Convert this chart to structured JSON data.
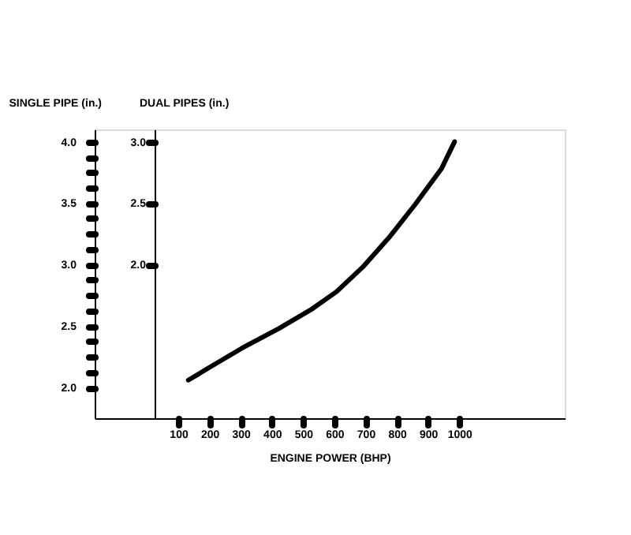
{
  "chart_data": {
    "type": "line",
    "xlabel": "ENGINE POWER (BHP)",
    "ylabel": "SINGLE PIPE (in.)",
    "y2label": "DUAL PIPES (in.)",
    "x": [
      132,
      211,
      304,
      422,
      523,
      607,
      691,
      775,
      859,
      943,
      985
    ],
    "series": [
      {
        "color": "#000000",
        "values": [
          2.06,
          2.18,
          2.32,
          2.48,
          2.63,
          2.78,
          2.98,
          3.22,
          3.49,
          3.78,
          4.0
        ]
      }
    ],
    "xlim": [
      -168,
      1338
    ],
    "xticks": [
      100,
      200,
      300,
      400,
      500,
      600,
      700,
      800,
      900,
      1000
    ],
    "ylim": [
      1.75,
      4.1
    ],
    "yticks": [
      {
        "value": 2,
        "label": "2.0"
      },
      {
        "value": 2.125,
        "label": null
      },
      {
        "value": 2.25,
        "label": null
      },
      {
        "value": 2.375,
        "label": null
      },
      {
        "value": 2.5,
        "label": "2.5"
      },
      {
        "value": 2.625,
        "label": null
      },
      {
        "value": 2.75,
        "label": null
      },
      {
        "value": 2.875,
        "label": null
      },
      {
        "value": 3,
        "label": "3.0"
      },
      {
        "value": 3.125,
        "label": null
      },
      {
        "value": 3.25,
        "label": null
      },
      {
        "value": 3.375,
        "label": null
      },
      {
        "value": 3.5,
        "label": "3.5"
      },
      {
        "value": 3.625,
        "label": null
      },
      {
        "value": 3.75,
        "label": null
      },
      {
        "value": 3.875,
        "label": null
      },
      {
        "value": 4,
        "label": "4.0"
      }
    ],
    "y2lim": [
      0.75,
      3.1
    ],
    "y2ticks": [
      {
        "value": 2,
        "label": "2.0"
      },
      {
        "value": 2.5,
        "label": "2.5"
      },
      {
        "value": 3,
        "label": "3.0"
      }
    ],
    "grid": false,
    "marker": "none",
    "line_style": "solid"
  }
}
